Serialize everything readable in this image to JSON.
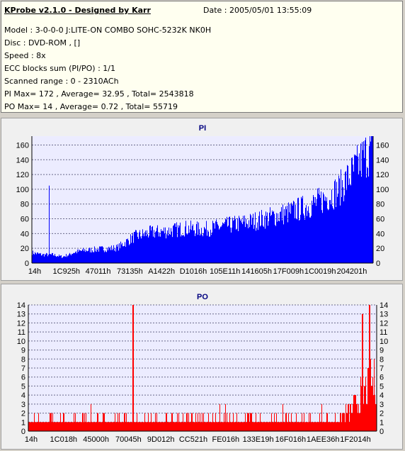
{
  "info": {
    "app_title": "KProbe v2.1.0 - Designed by Karr",
    "date": "Date : 2005/05/01 13:55:09",
    "lines": [
      "Model : 3-0-0-0 J:LITE-ON COMBO SOHC-5232K NK0H",
      "Disc : DVD-ROM ,  []",
      "Speed : 8x",
      "ECC blocks sum (PI/PO) : 1/1",
      "Scanned range : 0 - 2310ACh",
      "PI Max= 172 , Average= 32.95 , Total= 2543818",
      "PO Max= 14 , Average= 0.72 , Total= 55719"
    ]
  },
  "chart_data": [
    {
      "type": "area",
      "title": "PI",
      "color": "#0000ff",
      "ylim": [
        0,
        172
      ],
      "yticks": [
        0,
        20,
        40,
        60,
        80,
        100,
        120,
        140,
        160
      ],
      "grid": true,
      "x_tick_labels": [
        "14h",
        "1C925h",
        "47011h",
        "73135h",
        "A1422h",
        "D1016h",
        "105E11h",
        "141605h",
        "17F009h",
        "1C0019h",
        "204201h"
      ],
      "envelope_pct": [
        0,
        3,
        6,
        9,
        10,
        11,
        12,
        15,
        20,
        25,
        30,
        35,
        40,
        45,
        50,
        55,
        60,
        65,
        70,
        75,
        80,
        85,
        90,
        95,
        97,
        100
      ],
      "envelope_values": [
        15,
        12,
        12,
        9,
        11,
        12,
        15,
        18,
        20,
        22,
        38,
        44,
        46,
        50,
        48,
        52,
        56,
        60,
        66,
        72,
        80,
        90,
        105,
        135,
        150,
        168
      ],
      "spikes": [
        {
          "x_pct": 5,
          "value": 105
        }
      ]
    },
    {
      "type": "area",
      "title": "PO",
      "color": "#ff0000",
      "ylim": [
        0,
        14
      ],
      "yticks": [
        0,
        1,
        2,
        3,
        4,
        5,
        6,
        7,
        8,
        9,
        10,
        11,
        12,
        13,
        14
      ],
      "grid": true,
      "x_tick_labels": [
        "14h",
        "1C018h",
        "45000h",
        "70045h",
        "9D012h",
        "CC521h",
        "FE016h",
        "133E19h",
        "16F016h",
        "1AEE36h",
        "1F2014h"
      ],
      "envelope_pct": [
        0,
        20,
        30,
        60,
        75,
        85,
        92,
        96,
        100
      ],
      "envelope_values": [
        1,
        1,
        1,
        1,
        1,
        1,
        2,
        4,
        6
      ],
      "spikes": [
        {
          "x_pct": 30,
          "value": 14
        },
        {
          "x_pct": 98,
          "value": 14
        },
        {
          "x_pct": 96,
          "value": 13
        }
      ]
    }
  ]
}
